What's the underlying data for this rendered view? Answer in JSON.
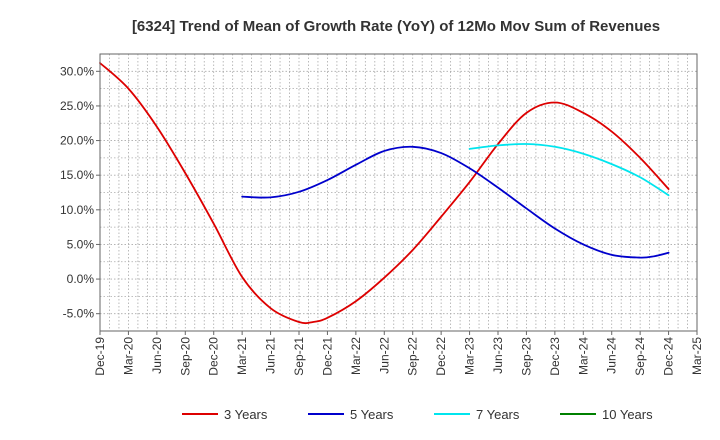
{
  "chart_data": {
    "type": "line",
    "title": "[6324]  Trend of Mean of Growth Rate (YoY) of 12Mo Mov Sum of Revenues",
    "xlabel": "",
    "ylabel": "",
    "ylim": [
      -7.5,
      32.5
    ],
    "y_ticks": [
      -5.0,
      0.0,
      5.0,
      10.0,
      15.0,
      20.0,
      25.0,
      30.0
    ],
    "y_tick_labels": [
      "-5.0%",
      "0.0%",
      "5.0%",
      "10.0%",
      "15.0%",
      "20.0%",
      "25.0%",
      "30.0%"
    ],
    "x_tick_labels": [
      "Dec-19",
      "Mar-20",
      "Jun-20",
      "Sep-20",
      "Dec-20",
      "Mar-21",
      "Jun-21",
      "Sep-21",
      "Dec-21",
      "Mar-22",
      "Jun-22",
      "Sep-22",
      "Dec-22",
      "Mar-23",
      "Jun-23",
      "Sep-23",
      "Dec-23",
      "Mar-24",
      "Jun-24",
      "Sep-24",
      "Dec-24",
      "Mar-25"
    ],
    "grid": true,
    "legend_position": "bottom",
    "series": [
      {
        "name": "3 Years",
        "color": "#dd0000",
        "x": [
          0,
          1,
          2,
          3,
          4,
          5,
          6,
          7,
          7.5,
          8,
          9,
          10,
          11,
          12,
          13,
          14,
          15,
          16,
          17,
          18,
          19,
          20
        ],
        "values": [
          31.2,
          27.5,
          22.0,
          15.3,
          8.0,
          0.3,
          -4.2,
          -6.2,
          -6.2,
          -5.6,
          -3.2,
          0.2,
          4.2,
          9.0,
          14.0,
          19.5,
          24.0,
          25.5,
          24.0,
          21.3,
          17.5,
          13.0
        ]
      },
      {
        "name": "5 Years",
        "color": "#0000cc",
        "x": [
          5,
          6,
          7,
          8,
          9,
          10,
          11,
          12,
          13,
          14,
          15,
          16,
          17,
          18,
          19,
          19.5,
          20
        ],
        "values": [
          11.9,
          11.8,
          12.6,
          14.3,
          16.5,
          18.5,
          19.1,
          18.2,
          16.0,
          13.2,
          10.2,
          7.3,
          5.0,
          3.5,
          3.1,
          3.3,
          3.8
        ]
      },
      {
        "name": "7 Years",
        "color": "#00e5ee",
        "x": [
          13,
          14,
          15,
          16,
          17,
          18,
          19,
          20
        ],
        "values": [
          18.8,
          19.3,
          19.5,
          19.1,
          18.1,
          16.6,
          14.7,
          12.1
        ]
      },
      {
        "name": "10 Years",
        "color": "#008000",
        "x": [],
        "values": []
      }
    ]
  }
}
